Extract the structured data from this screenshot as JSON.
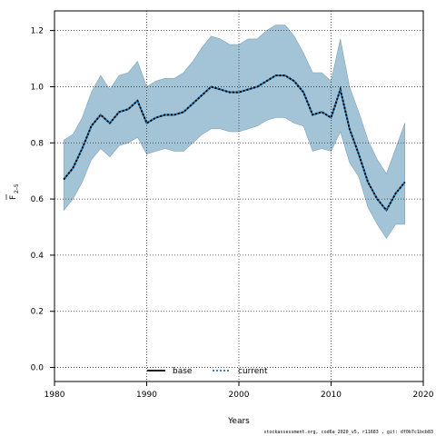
{
  "chart_data": {
    "type": "line",
    "xlabel": "Years",
    "ylabel_main": "F",
    "ylabel_sub": "2–5",
    "xlim": [
      1980,
      2020
    ],
    "ylim": [
      -0.05,
      1.27
    ],
    "x_ticks": [
      1980,
      1990,
      2000,
      2010,
      2020
    ],
    "y_ticks": [
      0.0,
      0.2,
      0.4,
      0.6,
      0.8,
      1.0,
      1.2
    ],
    "x_tick_labels": [
      "1980",
      "1990",
      "2000",
      "2010",
      "2020"
    ],
    "y_tick_labels": [
      "0.0",
      "0.2",
      "0.4",
      "0.6",
      "0.8",
      "1.0",
      "1.2"
    ],
    "grid": true,
    "legend_position": "bottom-center",
    "x": [
      1981,
      1982,
      1983,
      1984,
      1985,
      1986,
      1987,
      1988,
      1989,
      1990,
      1991,
      1992,
      1993,
      1994,
      1995,
      1996,
      1997,
      1998,
      1999,
      2000,
      2001,
      2002,
      2003,
      2004,
      2005,
      2006,
      2007,
      2008,
      2009,
      2010,
      2011,
      2012,
      2013,
      2014,
      2015,
      2016,
      2017,
      2018
    ],
    "series": [
      {
        "name": "base",
        "style": "solid",
        "color": "#000000",
        "values": [
          0.67,
          0.71,
          0.78,
          0.86,
          0.9,
          0.87,
          0.91,
          0.92,
          0.95,
          0.87,
          0.89,
          0.9,
          0.9,
          0.91,
          0.94,
          0.97,
          1.0,
          0.99,
          0.98,
          0.98,
          0.99,
          1.0,
          1.02,
          1.04,
          1.04,
          1.02,
          0.98,
          0.9,
          0.91,
          0.89,
          0.99,
          0.85,
          0.76,
          0.66,
          0.6,
          0.56,
          0.62,
          0.66
        ]
      },
      {
        "name": "current",
        "style": "dotted",
        "color": "#1f77b4",
        "values": [
          0.67,
          0.71,
          0.78,
          0.86,
          0.9,
          0.87,
          0.91,
          0.92,
          0.95,
          0.87,
          0.89,
          0.9,
          0.9,
          0.91,
          0.94,
          0.97,
          1.0,
          0.99,
          0.98,
          0.98,
          0.99,
          1.0,
          1.02,
          1.04,
          1.04,
          1.02,
          0.98,
          0.9,
          0.91,
          0.89,
          0.99,
          0.85,
          0.76,
          0.66,
          0.6,
          0.56,
          0.62,
          0.66
        ]
      }
    ],
    "band": {
      "color": "#a3c4d6",
      "upper": [
        0.81,
        0.83,
        0.89,
        0.98,
        1.04,
        0.99,
        1.04,
        1.05,
        1.09,
        1.0,
        1.02,
        1.03,
        1.03,
        1.05,
        1.09,
        1.14,
        1.18,
        1.17,
        1.15,
        1.15,
        1.17,
        1.17,
        1.2,
        1.22,
        1.22,
        1.18,
        1.12,
        1.05,
        1.05,
        1.02,
        1.17,
        1.0,
        0.91,
        0.81,
        0.74,
        0.69,
        0.78,
        0.87
      ],
      "lower": [
        0.56,
        0.6,
        0.66,
        0.74,
        0.78,
        0.75,
        0.79,
        0.8,
        0.82,
        0.76,
        0.77,
        0.78,
        0.77,
        0.77,
        0.8,
        0.83,
        0.85,
        0.85,
        0.84,
        0.84,
        0.85,
        0.86,
        0.88,
        0.89,
        0.89,
        0.87,
        0.86,
        0.77,
        0.78,
        0.77,
        0.84,
        0.73,
        0.68,
        0.57,
        0.51,
        0.46,
        0.51,
        0.51
      ]
    }
  },
  "footer": "stockassessment.org, cod6a_2020_v5, r11683 , git: df0b7c1bcb83"
}
